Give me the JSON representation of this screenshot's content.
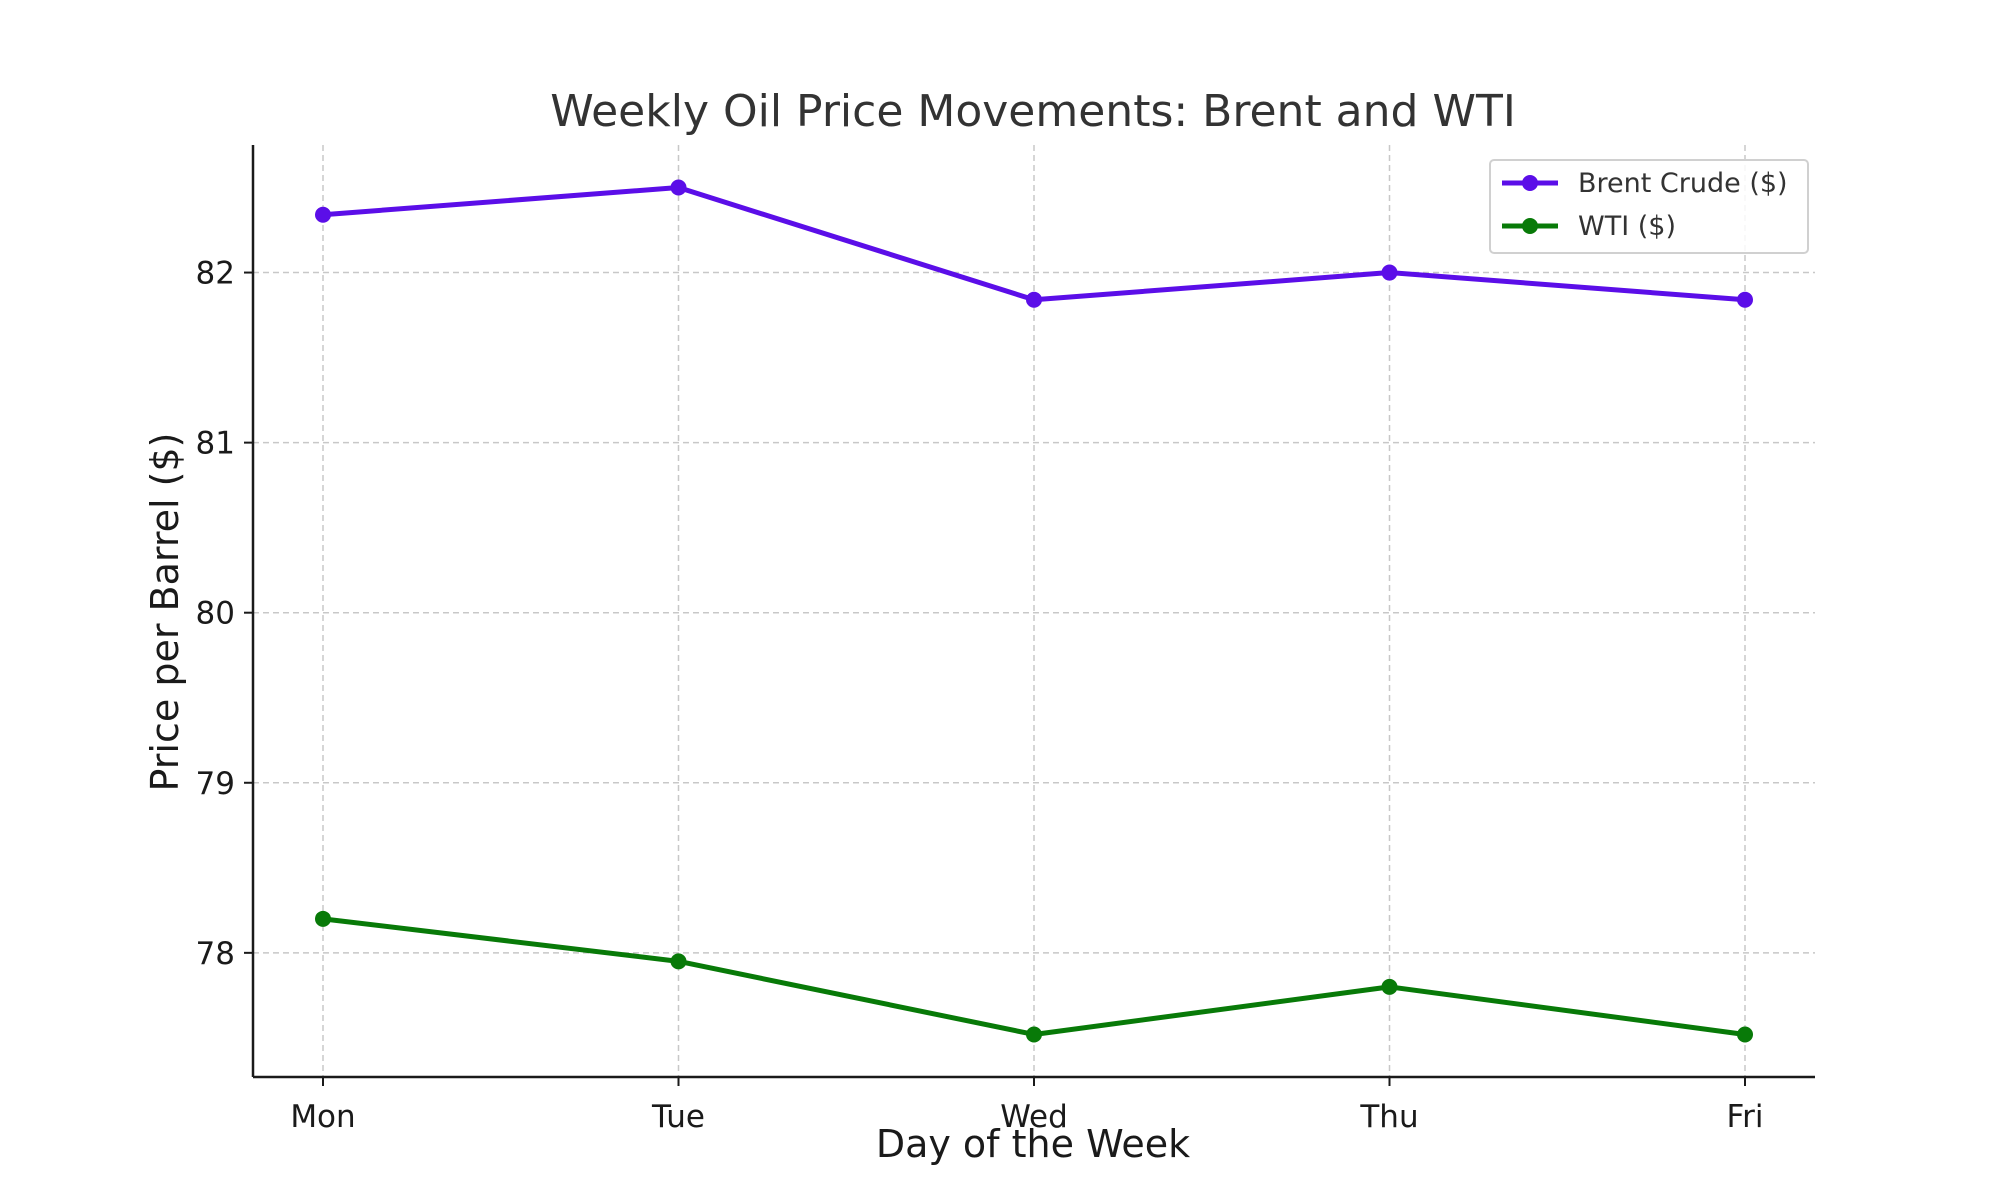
{
  "chart_data": {
    "type": "line",
    "title": "Weekly Oil Price Movements: Brent and WTI",
    "xlabel": "Day of the Week",
    "ylabel": "Price per Barrel ($)",
    "categories": [
      "Mon",
      "Tue",
      "Wed",
      "Thu",
      "Fri"
    ],
    "yticks": [
      78,
      79,
      80,
      81,
      82
    ],
    "ylim": [
      77.27,
      82.75
    ],
    "grid": true,
    "legend_position": "top-right",
    "series": [
      {
        "name": "Brent Crude ($)",
        "color": "#5b0ee8",
        "values": [
          82.34,
          82.5,
          81.84,
          82.0,
          81.84
        ]
      },
      {
        "name": "WTI ($)",
        "color": "#087a08",
        "values": [
          78.2,
          77.95,
          77.52,
          77.8,
          77.52
        ]
      }
    ]
  }
}
